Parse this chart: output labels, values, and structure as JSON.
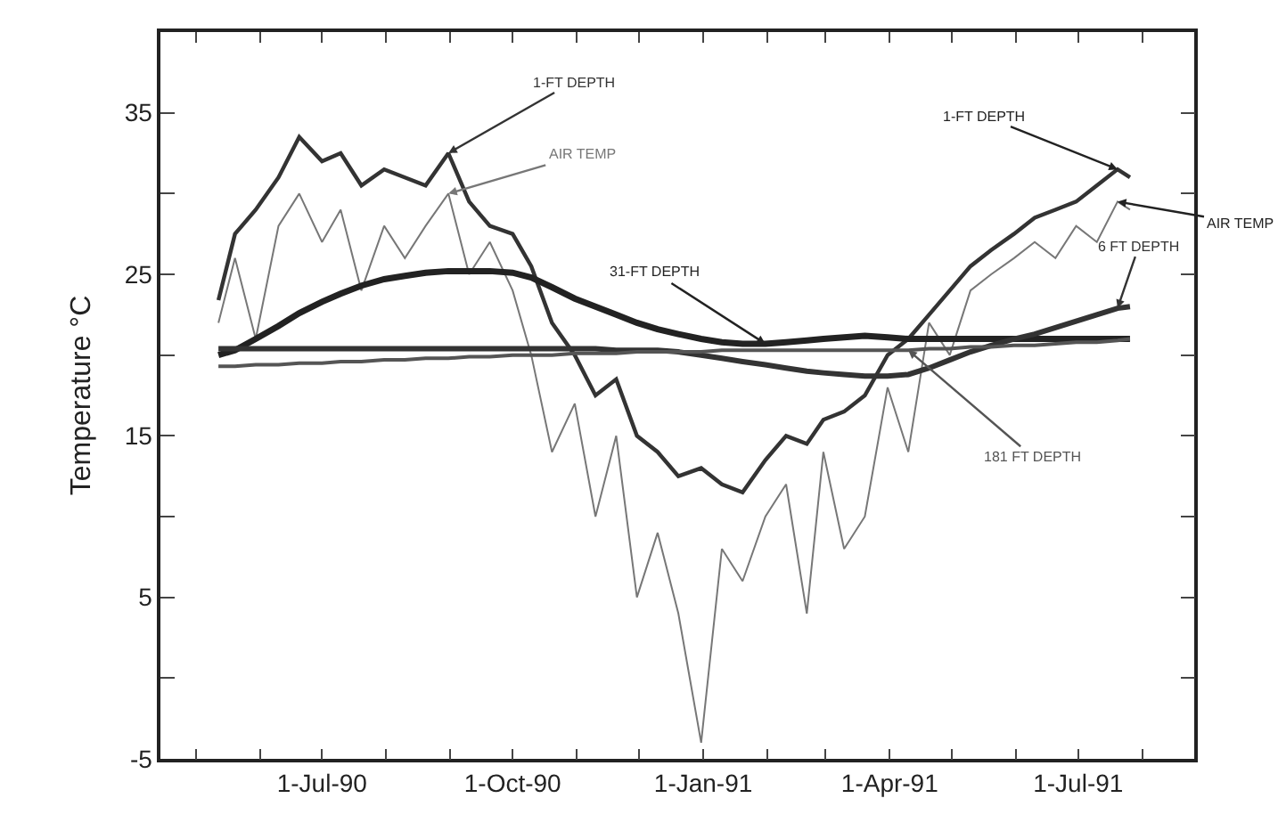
{
  "chart_data": {
    "type": "line",
    "ylabel": "Temperature °C",
    "x": [
      "1990-05-12",
      "1990-05-20",
      "1990-05-30",
      "1990-06-10",
      "1990-06-20",
      "1990-07-01",
      "1990-07-10",
      "1990-07-20",
      "1990-07-31",
      "1990-08-10",
      "1990-08-20",
      "1990-08-31",
      "1990-09-10",
      "1990-09-20",
      "1990-10-01",
      "1990-10-10",
      "1990-10-20",
      "1990-10-31",
      "1990-11-10",
      "1990-11-20",
      "1990-11-30",
      "1990-12-10",
      "1990-12-20",
      "1990-12-31",
      "1991-01-10",
      "1991-01-20",
      "1991-01-31",
      "1991-02-10",
      "1991-02-20",
      "1991-02-28",
      "1991-03-10",
      "1991-03-20",
      "1991-03-31",
      "1991-04-10",
      "1991-04-20",
      "1991-04-30",
      "1991-05-10",
      "1991-05-20",
      "1991-05-31",
      "1991-06-10",
      "1991-06-20",
      "1991-06-30",
      "1991-07-10",
      "1991-07-20",
      "1991-07-26"
    ],
    "series": [
      {
        "name": "1-FT DEPTH",
        "color": "#333333",
        "values": [
          23.4,
          27.5,
          29,
          31,
          33.5,
          32,
          32.5,
          30.5,
          31.5,
          31,
          30.5,
          32.5,
          29.5,
          28,
          27.5,
          25.5,
          22,
          20,
          17.5,
          18.5,
          15,
          14,
          12.5,
          13,
          12,
          11.5,
          13.5,
          15,
          14.5,
          16,
          16.5,
          17.5,
          20,
          21,
          22.5,
          24,
          25.5,
          26.5,
          27.5,
          28.5,
          29,
          29.5,
          30.5,
          31.5,
          31
        ]
      },
      {
        "name": "AIR TEMP",
        "color": "#777777",
        "values": [
          22,
          26,
          21,
          28,
          30,
          27,
          29,
          24,
          28,
          26,
          28,
          30,
          25,
          27,
          24,
          20,
          14,
          17,
          10,
          15,
          5,
          9,
          4,
          -4,
          8,
          6,
          10,
          12,
          4,
          14,
          8,
          10,
          18,
          14,
          22,
          20,
          24,
          25,
          26,
          27,
          26,
          28,
          27,
          29.5,
          29
        ]
      },
      {
        "name": "31-FT DEPTH",
        "color": "#222222",
        "values": [
          20,
          20.3,
          21,
          21.8,
          22.6,
          23.3,
          23.8,
          24.3,
          24.7,
          24.9,
          25.1,
          25.2,
          25.2,
          25.2,
          25.1,
          24.8,
          24.2,
          23.5,
          23,
          22.5,
          22,
          21.6,
          21.3,
          21,
          20.8,
          20.7,
          20.7,
          20.8,
          20.9,
          21,
          21.1,
          21.2,
          21.1,
          21,
          21,
          21,
          21,
          21,
          21,
          21,
          21,
          21,
          21,
          21,
          21
        ]
      },
      {
        "name": "6 FT DEPTH",
        "color": "#333333",
        "values": [
          20.4,
          20.4,
          20.4,
          20.4,
          20.4,
          20.4,
          20.4,
          20.4,
          20.4,
          20.4,
          20.4,
          20.4,
          20.4,
          20.4,
          20.4,
          20.4,
          20.4,
          20.4,
          20.4,
          20.3,
          20.3,
          20.3,
          20.2,
          20,
          19.8,
          19.6,
          19.4,
          19.2,
          19,
          18.9,
          18.8,
          18.7,
          18.7,
          18.8,
          19.2,
          19.7,
          20.2,
          20.6,
          21,
          21.3,
          21.7,
          22.1,
          22.5,
          22.9,
          23
        ]
      },
      {
        "name": "181 FT DEPTH",
        "color": "#555555",
        "values": [
          19.3,
          19.3,
          19.4,
          19.4,
          19.5,
          19.5,
          19.6,
          19.6,
          19.7,
          19.7,
          19.8,
          19.8,
          19.9,
          19.9,
          20,
          20,
          20,
          20.1,
          20.1,
          20.1,
          20.2,
          20.2,
          20.2,
          20.2,
          20.3,
          20.3,
          20.3,
          20.3,
          20.3,
          20.3,
          20.3,
          20.3,
          20.3,
          20.3,
          20.4,
          20.4,
          20.5,
          20.5,
          20.6,
          20.6,
          20.7,
          20.8,
          20.8,
          20.9,
          21
        ]
      }
    ],
    "annotations": [
      {
        "text": "1-FT DEPTH",
        "x": "1991-07-20",
        "y": 31.5
      },
      {
        "text": "AIR TEMP",
        "x": "1991-07-20",
        "y": 29.5
      }
    ],
    "xlim": [
      "1990-04-14",
      "1991-08-26"
    ],
    "xticks": [
      {
        "value": "1990-05-01",
        "label": null
      },
      {
        "value": "1990-06-01",
        "label": null
      },
      {
        "value": "1990-07-01",
        "label": "1-Jul-90"
      },
      {
        "value": "1990-08-01",
        "label": null
      },
      {
        "value": "1990-09-01",
        "label": null
      },
      {
        "value": "1990-10-01",
        "label": "1-Oct-90"
      },
      {
        "value": "1990-11-01",
        "label": null
      },
      {
        "value": "1990-12-01",
        "label": null
      },
      {
        "value": "1991-01-01",
        "label": "1-Jan-91"
      },
      {
        "value": "1991-02-01",
        "label": null
      },
      {
        "value": "1991-03-01",
        "label": null
      },
      {
        "value": "1991-04-01",
        "label": "1-Apr-91"
      },
      {
        "value": "1991-05-01",
        "label": null
      },
      {
        "value": "1991-06-01",
        "label": null
      },
      {
        "value": "1991-07-01",
        "label": "1-Jul-91"
      },
      {
        "value": "1991-08-01",
        "label": null
      }
    ],
    "ylim": [
      -5,
      40
    ],
    "yticks": [
      -5,
      {
        "value": 0,
        "label": null
      },
      5,
      {
        "value": 10,
        "label": null
      },
      15,
      {
        "value": 20,
        "label": null
      },
      25,
      {
        "value": 30,
        "label": null
      },
      35,
      {
        "value": 40,
        "label": null
      }
    ],
    "legend": false,
    "marker": "none",
    "line_style": "solid"
  }
}
